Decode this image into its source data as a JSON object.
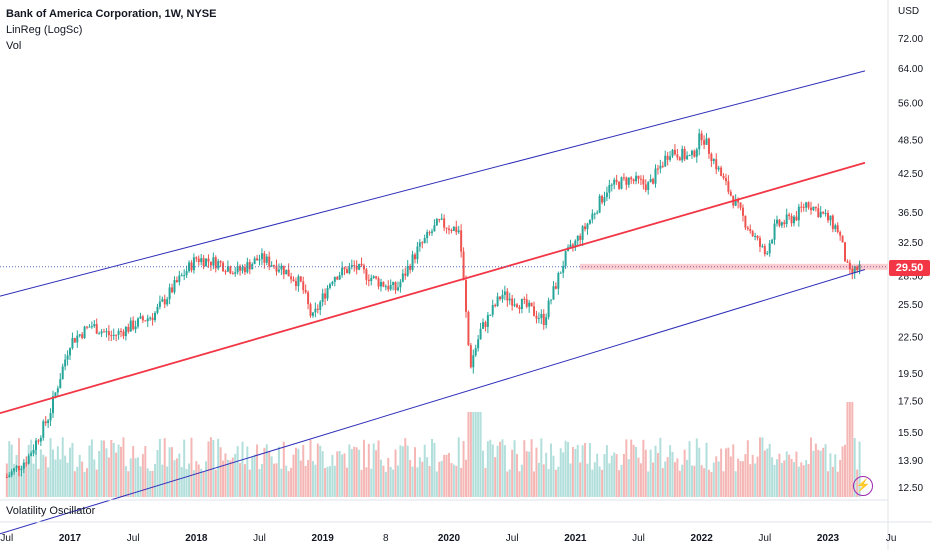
{
  "legend": {
    "symbol": "Bank of America Corporation, 1W, NYSE",
    "indicator": "LinReg (LogSc)",
    "volume": "Vol"
  },
  "oscillator_label": "Volatility Oscillator",
  "currency": "USD",
  "last_price": "29.50",
  "colors": {
    "up": "#26a69a",
    "down": "#ef5350",
    "regression_mid": "#f23645",
    "regression_band": "#2e2eb8",
    "price_line": "#5c6bc0",
    "price_badge": "#f23645"
  },
  "chart_data": {
    "type": "candlestick",
    "y_scale": "log",
    "ylim": [
      12.0,
      80.0
    ],
    "y_ticks": [
      12.5,
      13.9,
      15.5,
      17.5,
      19.5,
      22.5,
      25.5,
      28.5,
      32.5,
      36.5,
      42.5,
      48.5,
      56.0,
      64.0,
      72.0
    ],
    "y_tick_labels": [
      "12.50",
      "13.90",
      "15.50",
      "17.50",
      "19.50",
      "22.50",
      "25.50",
      "28.50",
      "32.50",
      "36.50",
      "42.50",
      "48.50",
      "56.00",
      "64.00",
      "72.00"
    ],
    "x_ticks": [
      "Jul",
      "2017",
      "Jul",
      "2018",
      "Jul",
      "2019",
      "8",
      "2020",
      "Jul",
      "2021",
      "Jul",
      "2022",
      "Jul",
      "2023",
      "Ju"
    ],
    "price_path": [
      [
        "2016-07",
        13.0
      ],
      [
        "2016-09",
        14.0
      ],
      [
        "2016-11",
        16.5
      ],
      [
        "2017-01",
        22.0
      ],
      [
        "2017-03",
        23.5
      ],
      [
        "2017-05",
        22.5
      ],
      [
        "2017-07",
        23.5
      ],
      [
        "2017-09",
        24.5
      ],
      [
        "2017-11",
        27.5
      ],
      [
        "2018-01",
        30.5
      ],
      [
        "2018-03",
        30.0
      ],
      [
        "2018-05",
        29.0
      ],
      [
        "2018-07",
        30.5
      ],
      [
        "2018-09",
        29.5
      ],
      [
        "2018-11",
        27.5
      ],
      [
        "2018-12",
        24.0
      ],
      [
        "2019-02",
        28.5
      ],
      [
        "2019-04",
        29.5
      ],
      [
        "2019-06",
        28.0
      ],
      [
        "2019-08",
        27.0
      ],
      [
        "2019-10",
        31.5
      ],
      [
        "2019-12",
        35.0
      ],
      [
        "2020-02",
        34.0
      ],
      [
        "2020-03",
        20.0
      ],
      [
        "2020-04",
        23.0
      ],
      [
        "2020-06",
        26.5
      ],
      [
        "2020-08",
        25.5
      ],
      [
        "2020-10",
        24.0
      ],
      [
        "2020-12",
        30.5
      ],
      [
        "2021-02",
        34.5
      ],
      [
        "2021-04",
        40.0
      ],
      [
        "2021-06",
        41.5
      ],
      [
        "2021-08",
        40.5
      ],
      [
        "2021-10",
        46.5
      ],
      [
        "2021-12",
        45.0
      ],
      [
        "2022-01",
        49.5
      ],
      [
        "2022-03",
        41.5
      ],
      [
        "2022-05",
        35.5
      ],
      [
        "2022-07",
        31.0
      ],
      [
        "2022-08",
        34.5
      ],
      [
        "2022-10",
        36.0
      ],
      [
        "2022-11",
        38.0
      ],
      [
        "2023-01",
        35.5
      ],
      [
        "2023-02",
        34.0
      ],
      [
        "2023-03",
        28.5
      ],
      [
        "2023-04",
        29.5
      ]
    ],
    "regression": {
      "start": [
        "2016-07",
        16.8
      ],
      "end": [
        "2023-04",
        44.0
      ],
      "upper_start": [
        "2016-07",
        26.5
      ],
      "upper_end": [
        "2023-04",
        63.0
      ],
      "lower_start": [
        "2016-07",
        10.5
      ],
      "lower_end": [
        "2023-04",
        29.0
      ]
    },
    "last_price": 29.5
  }
}
